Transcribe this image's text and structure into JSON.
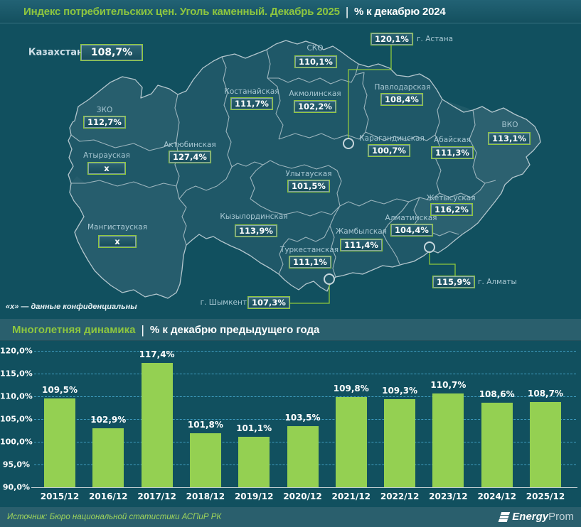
{
  "header": {
    "title_main": "Индекс потребительских цен. Уголь каменный. Декабрь 2025",
    "separator": "|",
    "title_sub": "% к декабрю 2024"
  },
  "map": {
    "country": {
      "label": "Казахстан",
      "value": "108,7%"
    },
    "regions": [
      {
        "name": "ЗКО",
        "value": "112,7%"
      },
      {
        "name": "Атырауская",
        "value": "x"
      },
      {
        "name": "Мангистауская",
        "value": "x"
      },
      {
        "name": "Актюбинская",
        "value": "127,4%"
      },
      {
        "name": "Костанайская",
        "value": "111,7%"
      },
      {
        "name": "СКО",
        "value": "110,1%"
      },
      {
        "name": "Акмолинская",
        "value": "102,2%"
      },
      {
        "name": "Павлодарская",
        "value": "108,4%"
      },
      {
        "name": "Карагандинская",
        "value": "100,7%"
      },
      {
        "name": "Абайская",
        "value": "111,3%"
      },
      {
        "name": "ВКО",
        "value": "113,1%"
      },
      {
        "name": "Улытауская",
        "value": "101,5%"
      },
      {
        "name": "Кызылординская",
        "value": "113,9%"
      },
      {
        "name": "Жамбылская",
        "value": "111,4%"
      },
      {
        "name": "Алматинская",
        "value": "104,4%"
      },
      {
        "name": "Жетысуская",
        "value": "116,2%"
      },
      {
        "name": "Туркестанская",
        "value": "111,1%"
      }
    ],
    "cities": {
      "astana": {
        "label": "г. Астана",
        "value": "120,1%"
      },
      "almaty": {
        "label": "г. Алматы",
        "value": "115,9%"
      },
      "shymkent": {
        "label": "г. Шымкент",
        "value": "107,3%"
      }
    },
    "note": "«x» — данные конфиденциальны"
  },
  "section2": {
    "title_accent": "Многолетняя динамика",
    "separator": "|",
    "title_rest": "% к декабрю предыдущего года"
  },
  "chart_data": {
    "type": "bar",
    "title": "Многолетняя динамика",
    "subtitle": "% к декабрю предыдущего года",
    "categories": [
      "2015/12",
      "2016/12",
      "2017/12",
      "2018/12",
      "2019/12",
      "2020/12",
      "2021/12",
      "2022/12",
      "2023/12",
      "2024/12",
      "2025/12"
    ],
    "values": [
      109.5,
      102.9,
      117.4,
      101.8,
      101.1,
      103.5,
      109.8,
      109.3,
      110.7,
      108.6,
      108.7
    ],
    "value_labels": [
      "109,5%",
      "102,9%",
      "117,4%",
      "101,8%",
      "101,1%",
      "103,5%",
      "109,8%",
      "109,3%",
      "110,7%",
      "108,6%",
      "108,7%"
    ],
    "xlabel": "",
    "ylabel": "",
    "ylim": [
      90,
      120
    ],
    "yticks": [
      {
        "value": 120,
        "label": "120,0%"
      },
      {
        "value": 115,
        "label": "115,0%"
      },
      {
        "value": 110,
        "label": "110,0%"
      },
      {
        "value": 105,
        "label": "105,0%"
      },
      {
        "value": 100,
        "label": "100,0%"
      },
      {
        "value": 95,
        "label": "95,0%"
      },
      {
        "value": 90,
        "label": "90,0%"
      }
    ],
    "grid": true,
    "legend": false,
    "bar_color": "#94d052"
  },
  "footer": {
    "source": "Источник: Бюро национальной статистики АСПиР РК",
    "logo": {
      "bold": "Energy",
      "light": "Prom"
    }
  },
  "colors": {
    "accent_green": "#8dc63f",
    "band": "#2a5f6d",
    "background": "#11505f",
    "bar": "#94d052",
    "grid": "#3f9cbf",
    "box_border": "#8fc83c"
  }
}
